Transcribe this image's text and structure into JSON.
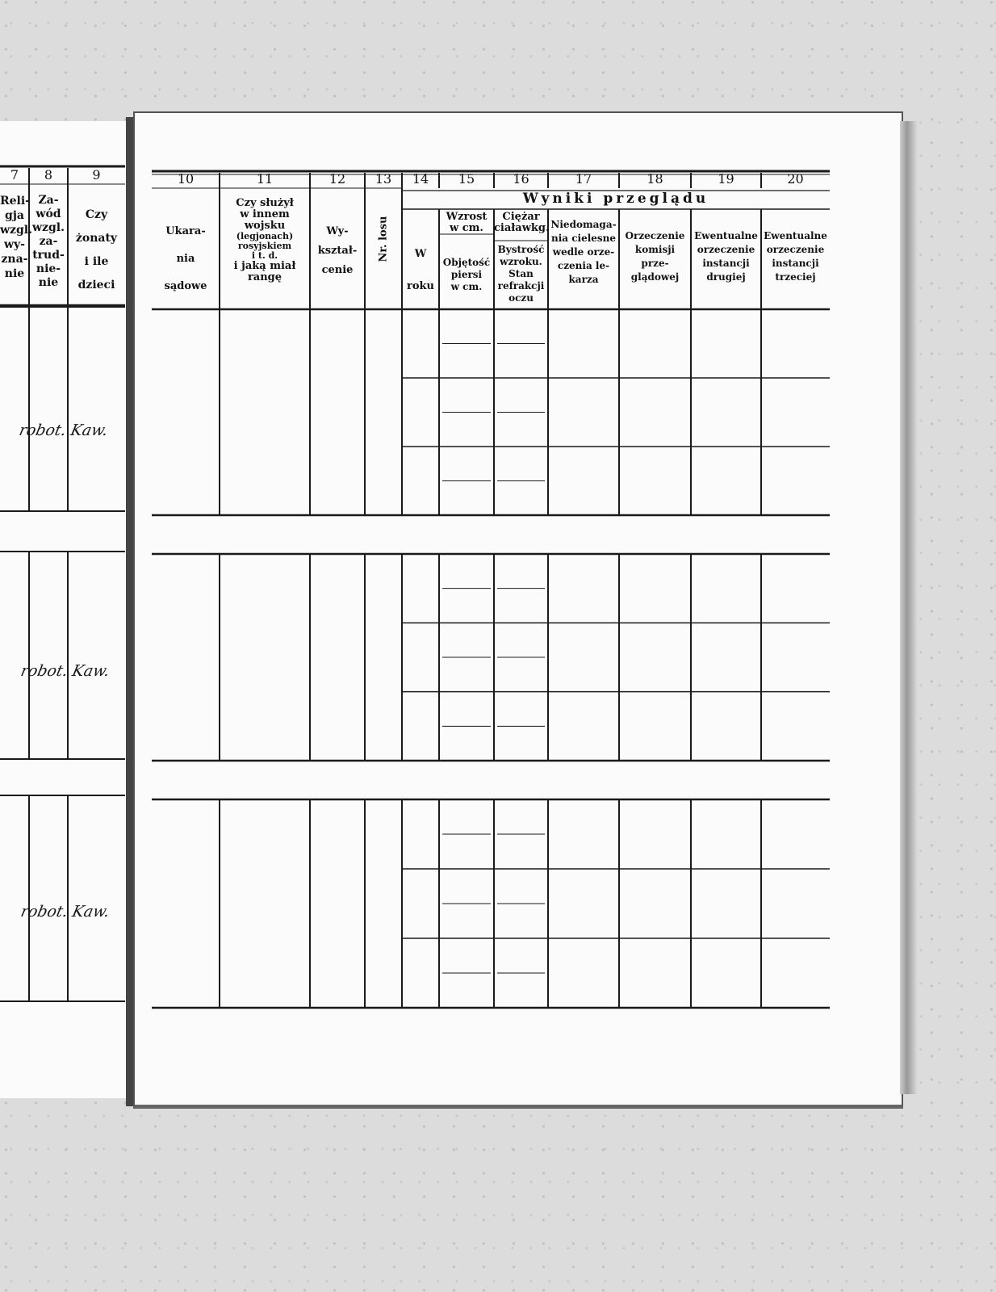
{
  "left_page": {
    "column_numbers": [
      "7",
      "8",
      "9"
    ],
    "headers": [
      [
        "Reli-",
        "gja",
        "wzgl.",
        "wy-",
        "zna-",
        "nie"
      ],
      [
        "Za-",
        "wód",
        "wzgl.",
        "za-",
        "trud-",
        "nie-",
        "nie"
      ],
      [
        "Czy",
        "żonaty",
        "i ile",
        "dzieci"
      ]
    ],
    "entries": [
      "robot. Kaw.",
      "robot. Kaw.",
      "robot. Kaw."
    ]
  },
  "right_page": {
    "column_numbers": [
      "10",
      "11",
      "12",
      "13",
      "14",
      "15",
      "16",
      "17",
      "18",
      "19",
      "20"
    ],
    "group_header": "Wyniki przeglądu",
    "headers": {
      "c10": [
        "Ukara-",
        "nia",
        "sądowe"
      ],
      "c11": [
        "Czy służył",
        "w innem",
        "wojsku"
      ],
      "c11_small": [
        "(legjonach)",
        "rosyjskiem",
        "i t. d."
      ],
      "c11_end": [
        "i jaką miał",
        "rangę"
      ],
      "c12": [
        "Wy-",
        "kształ-",
        "cenie"
      ],
      "c13": "Nr. losu",
      "c14": [
        "W",
        "roku"
      ],
      "c15_top": [
        "Wzrost",
        "w cm."
      ],
      "c15_bottom": [
        "Objętość",
        "piersi",
        "w cm."
      ],
      "c16_top": [
        "Ciężar",
        "ciaławkg."
      ],
      "c16_bottom": [
        "Bystrość",
        "wzroku.",
        "Stan",
        "refrakcji",
        "oczu"
      ],
      "c17": [
        "Niedomaga-",
        "nia cielesne",
        "wedle orze-",
        "czenia le-",
        "karza"
      ],
      "c18": [
        "Orzeczenie",
        "komisji",
        "prze-",
        "glądowej"
      ],
      "c19": [
        "Ewentualne",
        "orzeczenie",
        "instancji",
        "drugiej"
      ],
      "c20": [
        "Ewentualne",
        "orzeczenie",
        "instancji",
        "trzeciej"
      ]
    }
  }
}
